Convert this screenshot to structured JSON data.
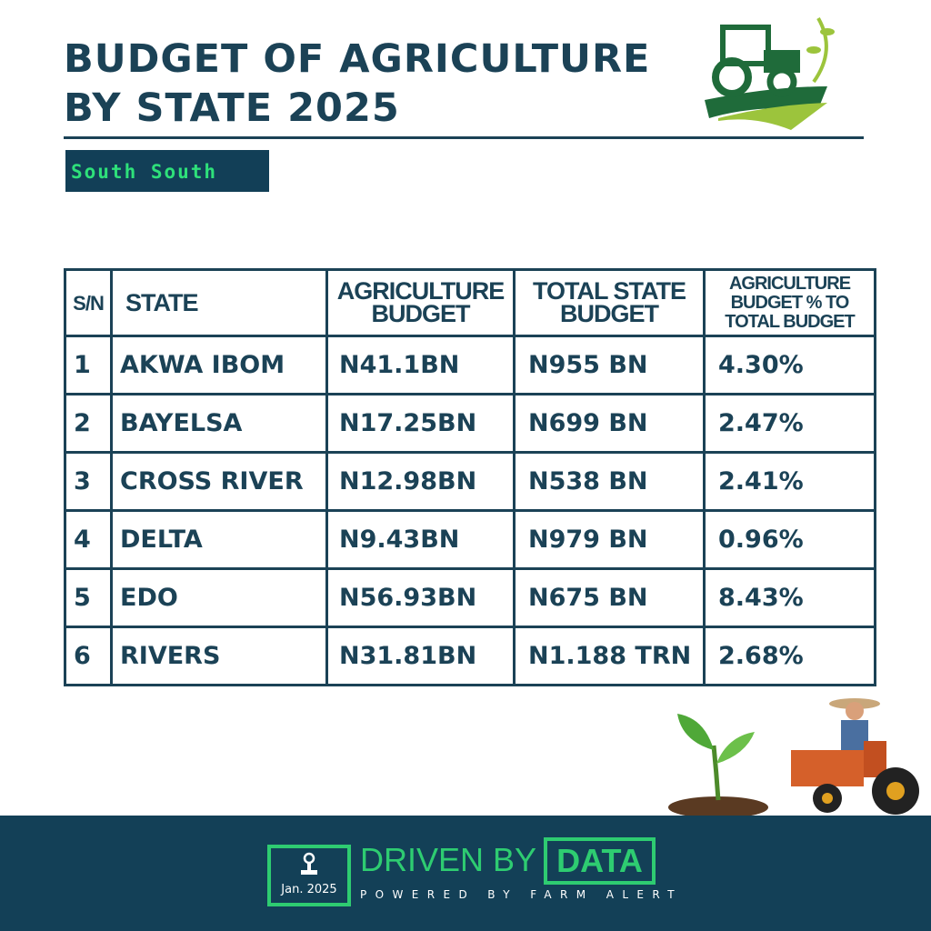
{
  "header": {
    "title_line1": "BUDGET OF AGRICULTURE",
    "title_line2": "BY STATE 2025",
    "region": "South South"
  },
  "table": {
    "columns": [
      "S/N",
      "STATE",
      "AGRICULTURE BUDGET",
      "TOTAL STATE BUDGET",
      "AGRICULTURE BUDGET % TO TOTAL BUDGET"
    ],
    "rows": [
      [
        "1",
        "AKWA IBOM",
        "N41.1BN",
        "N955 BN",
        "4.30%"
      ],
      [
        "2",
        "BAYELSA",
        "N17.25BN",
        "N699 BN",
        "2.47%"
      ],
      [
        "3",
        "CROSS RIVER",
        "N12.98BN",
        "N538 BN",
        "2.41%"
      ],
      [
        "4",
        "DELTA",
        "N9.43BN",
        "N979 BN",
        "0.96%"
      ],
      [
        "5",
        "EDO",
        "N56.93BN",
        "N675 BN",
        "8.43%"
      ],
      [
        "6",
        "RIVERS",
        "N31.81BN",
        "N1.188 TRN",
        "2.68%"
      ]
    ]
  },
  "footer": {
    "date": "Jan. 2025",
    "driven": "DRIVEN BY",
    "data": "DATA",
    "powered": "POWERED BY FARM ALERT"
  },
  "colors": {
    "primary": "#1b4256",
    "accent": "#2ecc71",
    "footer_bg": "#134057"
  }
}
